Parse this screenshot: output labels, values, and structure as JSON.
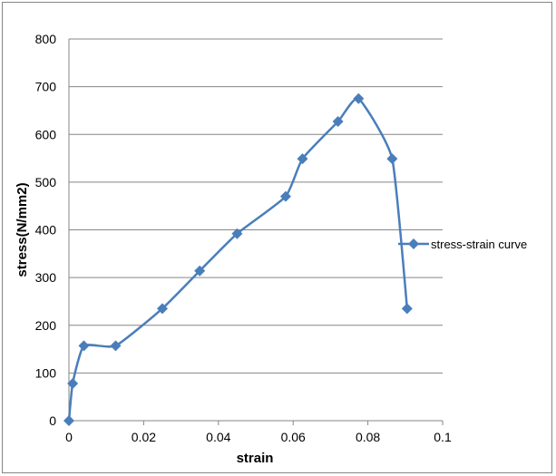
{
  "chart_data": {
    "type": "scatter",
    "xlabel": "strain",
    "ylabel": "stress(N/mm2)",
    "xlim": [
      0,
      0.1
    ],
    "ylim": [
      0,
      800
    ],
    "x_ticks": [
      "0",
      "0.02",
      "0.04",
      "0.06",
      "0.08",
      "0.1"
    ],
    "y_ticks": [
      "0",
      "100",
      "200",
      "300",
      "400",
      "500",
      "600",
      "700",
      "800"
    ],
    "grid": "horizontal",
    "legend_position": "right",
    "line_style": "smooth-with-markers",
    "marker": "diamond",
    "series_color": "#4a7ebb",
    "series": [
      {
        "name": "stress-strain curve",
        "x": [
          0,
          0.001,
          0.004,
          0.0125,
          0.025,
          0.035,
          0.045,
          0.058,
          0.0625,
          0.072,
          0.0775,
          0.0865,
          0.0905
        ],
        "y": [
          0,
          78,
          157,
          157,
          235,
          314,
          392,
          470,
          549,
          627,
          675,
          549,
          235
        ]
      }
    ]
  }
}
